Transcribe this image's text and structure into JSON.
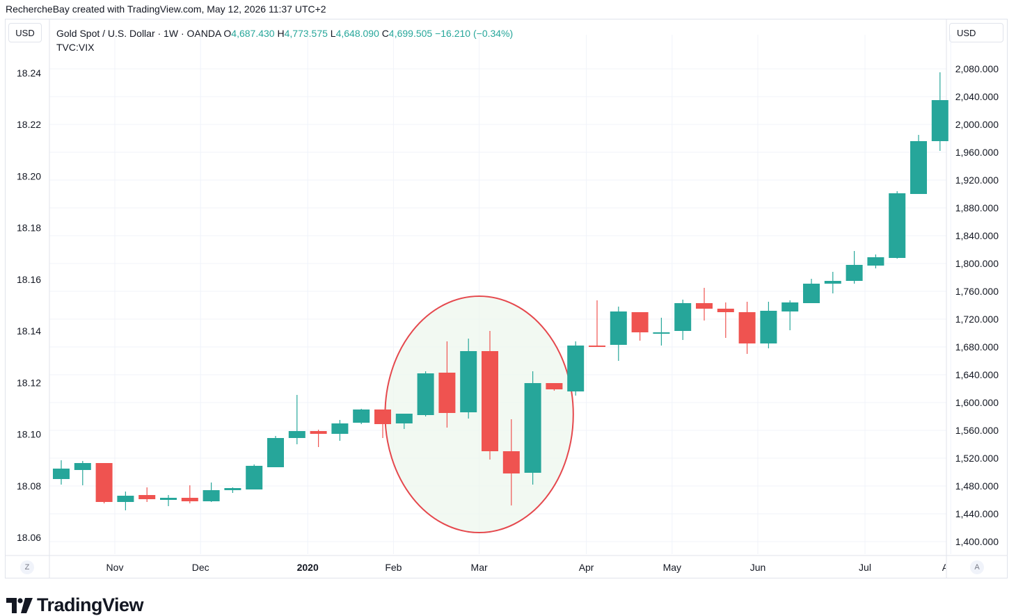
{
  "header": "RechercheBay created with TradingView.com, May 12, 2026 11:37 UTC+2",
  "left_unit": "USD",
  "right_unit": "USD",
  "legend": {
    "symbol": "Gold Spot / U.S. Dollar · 1W · OANDA",
    "o_key": "O",
    "o_val": "4,687.430",
    "h_key": "H",
    "h_val": "4,773.575",
    "l_key": "L",
    "l_val": "4,648.090",
    "c_key": "C",
    "c_val": "4,699.505",
    "change": "−16.210 (−0.34%)",
    "second_series": "TVC:VIX"
  },
  "corner_left": "Z",
  "corner_right": "A",
  "brand": "TradingView",
  "colors": {
    "up": "#26a69a",
    "down": "#ef5350",
    "grid": "#f0f3fa",
    "highlight_stroke": "#e5484d",
    "highlight_fill": "#eef7ee"
  },
  "chart_data": {
    "type": "candlestick",
    "x_ticks": [
      "Nov",
      "Dec",
      "2020",
      "Feb",
      "Mar",
      "Apr",
      "May",
      "Jun",
      "Jul",
      "Aug"
    ],
    "x_tick_weeks": [
      2.5,
      6.5,
      11.5,
      15.5,
      19.5,
      24.5,
      28.5,
      32.5,
      37.5,
      41.5
    ],
    "y_left_ticks": [
      "18.24",
      "18.22",
      "18.20",
      "18.18",
      "18.16",
      "18.14",
      "18.12",
      "18.10",
      "18.08",
      "18.06"
    ],
    "y_left_range": [
      18.06,
      18.24
    ],
    "y_right_ticks": [
      "2,080.000",
      "2,040.000",
      "2,000.000",
      "1,960.000",
      "1,920.000",
      "1,880.000",
      "1,840.000",
      "1,800.000",
      "1,760.000",
      "1,720.000",
      "1,680.000",
      "1,640.000",
      "1,600.000",
      "1,560.000",
      "1,520.000",
      "1,480.000",
      "1,440.000",
      "1,400.000"
    ],
    "y_right_range": [
      1400,
      2080
    ],
    "candles": [
      {
        "o": 1490,
        "h": 1517,
        "l": 1482,
        "c": 1505
      },
      {
        "o": 1503,
        "h": 1516,
        "l": 1481,
        "c": 1513
      },
      {
        "o": 1513,
        "h": 1513,
        "l": 1455,
        "c": 1457
      },
      {
        "o": 1457,
        "h": 1472,
        "l": 1445,
        "c": 1466
      },
      {
        "o": 1467,
        "h": 1478,
        "l": 1457,
        "c": 1461
      },
      {
        "o": 1460,
        "h": 1467,
        "l": 1451,
        "c": 1463
      },
      {
        "o": 1463,
        "h": 1481,
        "l": 1455,
        "c": 1458
      },
      {
        "o": 1458,
        "h": 1485,
        "l": 1457,
        "c": 1474
      },
      {
        "o": 1474,
        "h": 1478,
        "l": 1470,
        "c": 1477
      },
      {
        "o": 1475,
        "h": 1511,
        "l": 1475,
        "c": 1509
      },
      {
        "o": 1507,
        "h": 1552,
        "l": 1507,
        "c": 1549
      },
      {
        "o": 1549,
        "h": 1611,
        "l": 1540,
        "c": 1559
      },
      {
        "o": 1559,
        "h": 1561,
        "l": 1536,
        "c": 1555
      },
      {
        "o": 1555,
        "h": 1575,
        "l": 1545,
        "c": 1570
      },
      {
        "o": 1571,
        "h": 1591,
        "l": 1569,
        "c": 1590
      },
      {
        "o": 1590,
        "h": 1590,
        "l": 1549,
        "c": 1569
      },
      {
        "o": 1570,
        "h": 1584,
        "l": 1562,
        "c": 1584
      },
      {
        "o": 1582,
        "h": 1645,
        "l": 1580,
        "c": 1642
      },
      {
        "o": 1643,
        "h": 1688,
        "l": 1564,
        "c": 1585
      },
      {
        "o": 1586,
        "h": 1692,
        "l": 1577,
        "c": 1674
      },
      {
        "o": 1674,
        "h": 1703,
        "l": 1518,
        "c": 1530
      },
      {
        "o": 1530,
        "h": 1576,
        "l": 1452,
        "c": 1498
      },
      {
        "o": 1499,
        "h": 1645,
        "l": 1482,
        "c": 1628
      },
      {
        "o": 1628,
        "h": 1628,
        "l": 1617,
        "c": 1619
      },
      {
        "o": 1616,
        "h": 1688,
        "l": 1610,
        "c": 1682
      },
      {
        "o": 1682,
        "h": 1747,
        "l": 1681,
        "c": 1681
      },
      {
        "o": 1683,
        "h": 1738,
        "l": 1660,
        "c": 1731
      },
      {
        "o": 1730,
        "h": 1730,
        "l": 1689,
        "c": 1701
      },
      {
        "o": 1701,
        "h": 1722,
        "l": 1682,
        "c": 1701
      },
      {
        "o": 1703,
        "h": 1748,
        "l": 1690,
        "c": 1743
      },
      {
        "o": 1743,
        "h": 1765,
        "l": 1718,
        "c": 1735
      },
      {
        "o": 1735,
        "h": 1744,
        "l": 1693,
        "c": 1730
      },
      {
        "o": 1730,
        "h": 1745,
        "l": 1670,
        "c": 1685
      },
      {
        "o": 1685,
        "h": 1745,
        "l": 1678,
        "c": 1732
      },
      {
        "o": 1731,
        "h": 1747,
        "l": 1704,
        "c": 1744
      },
      {
        "o": 1743,
        "h": 1778,
        "l": 1743,
        "c": 1771
      },
      {
        "o": 1771,
        "h": 1788,
        "l": 1757,
        "c": 1775
      },
      {
        "o": 1775,
        "h": 1818,
        "l": 1771,
        "c": 1798
      },
      {
        "o": 1797,
        "h": 1813,
        "l": 1793,
        "c": 1809
      },
      {
        "o": 1808,
        "h": 1904,
        "l": 1807,
        "c": 1901
      },
      {
        "o": 1900,
        "h": 1985,
        "l": 1900,
        "c": 1976
      },
      {
        "o": 1976,
        "h": 2075,
        "l": 1962,
        "c": 2035
      }
    ],
    "highlight_span_weeks": [
      15.5,
      23.5
    ]
  }
}
